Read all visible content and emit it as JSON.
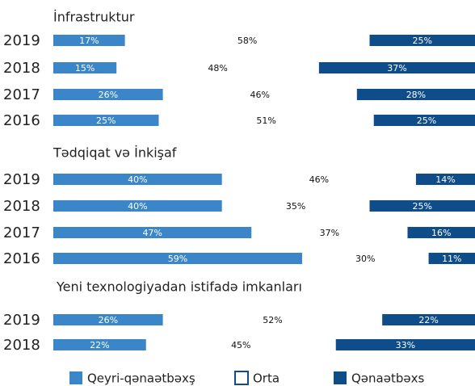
{
  "chart_data": [
    {
      "type": "bar",
      "orientation": "horizontal",
      "stacked": true,
      "title": "İnfrastruktur",
      "categories": [
        "2019",
        "2018",
        "2017",
        "2016"
      ],
      "xlim": [
        0,
        100
      ],
      "series": [
        {
          "color": "#3a86c8",
          "values": [
            17,
            15,
            26,
            25
          ],
          "value_labels": [
            "17%",
            "15%",
            "26%",
            "25%"
          ]
        },
        {
          "color": "#ffffff",
          "values": [
            58,
            48,
            46,
            51
          ],
          "value_labels": [
            "58%",
            "48%",
            "46%",
            "51%"
          ]
        },
        {
          "color": "#0f4d8a",
          "values": [
            25,
            37,
            28,
            25
          ],
          "value_labels": [
            "25%",
            "37%",
            "28%",
            "25%"
          ]
        }
      ]
    },
    {
      "type": "bar",
      "orientation": "horizontal",
      "stacked": true,
      "title": "Tədqiqat və İnkişaf",
      "categories": [
        "2019",
        "2018",
        "2017",
        "2016"
      ],
      "xlim": [
        0,
        100
      ],
      "series": [
        {
          "color": "#3a86c8",
          "values": [
            40,
            40,
            47,
            59
          ],
          "value_labels": [
            "40%",
            "40%",
            "47%",
            "59%"
          ]
        },
        {
          "color": "#ffffff",
          "values": [
            46,
            35,
            37,
            30
          ],
          "value_labels": [
            "46%",
            "35%",
            "37%",
            "30%"
          ]
        },
        {
          "color": "#0f4d8a",
          "values": [
            14,
            25,
            16,
            11
          ],
          "value_labels": [
            "14%",
            "25%",
            "16%",
            "11%"
          ]
        }
      ]
    },
    {
      "type": "bar",
      "orientation": "horizontal",
      "stacked": true,
      "title": "Yeni texnologiyadan istifadə imkanları",
      "categories": [
        "2019",
        "2018"
      ],
      "xlim": [
        0,
        100
      ],
      "series": [
        {
          "name": "Qeyri-qənaətbəxş",
          "color": "#3a86c8",
          "values": [
            26,
            22
          ],
          "value_labels": [
            "26%",
            "22%"
          ]
        },
        {
          "name": "Orta",
          "color": "#ffffff",
          "values": [
            52,
            45
          ],
          "value_labels": [
            "52%",
            "45%"
          ]
        },
        {
          "name": "Qənaətbəxs",
          "color": "#0f4d8a",
          "values": [
            22,
            33
          ],
          "value_labels": [
            "22%",
            "33%"
          ]
        }
      ]
    }
  ]
}
